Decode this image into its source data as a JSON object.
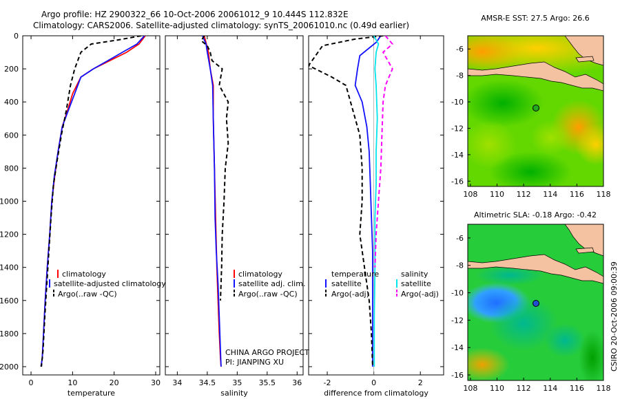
{
  "header": {
    "title_line1": "Argo profile: HZ 2900322_66 10-Oct-2006 20061012_9 10.444S 112.832E",
    "title_line2": "Climatology: CARS2006. Satellite-adjusted climatology: synTS_20061010.nc (0.49d earlier)"
  },
  "side_stamp": "CSIRO 20-Oct-2006 09:00:39",
  "project_note": {
    "line1": "CHINA ARGO PROJECT",
    "line2": "PI: JIANPING XU"
  },
  "colors": {
    "climatology": "#ff0000",
    "satellite": "#1010ff",
    "argo": "#000000",
    "salinity_sat": "#00e5ee",
    "salinity_argo": "#ff00ff",
    "land": "#f4c2a0"
  },
  "chart_data": [
    {
      "id": "temperature",
      "type": "line",
      "xlabel": "temperature",
      "xlim": [
        -2,
        31
      ],
      "ylim": [
        2050,
        0
      ],
      "xticks": [
        0,
        10,
        20,
        30
      ],
      "xtick_labels": [
        "0",
        "10",
        "20",
        "30"
      ],
      "yticks": [
        0,
        200,
        400,
        600,
        800,
        1000,
        1200,
        1400,
        1600,
        1800,
        2000
      ],
      "ytick_labels": [
        "0",
        "200",
        "400",
        "600",
        "800",
        "1000",
        "1200",
        "1400",
        "1600",
        "1800",
        "2000"
      ],
      "legend": [
        "climatology",
        "satellite-adjusted climatology",
        "Argo(..raw -QC)"
      ],
      "series": [
        {
          "name": "climatology",
          "color": "#ff0000",
          "dashed": false,
          "x": [
            27.5,
            26,
            23,
            19,
            15,
            12,
            10,
            8.8,
            7.5,
            6.5,
            5.7,
            5,
            4.5,
            3.9,
            3.4,
            3,
            2.7,
            2.4
          ],
          "y": [
            0,
            50,
            100,
            150,
            200,
            250,
            350,
            450,
            550,
            700,
            850,
            1000,
            1200,
            1400,
            1600,
            1800,
            1950,
            2000
          ]
        },
        {
          "name": "satellite-adjusted climatology",
          "color": "#1010ff",
          "dashed": false,
          "x": [
            27.3,
            25.5,
            22,
            18.5,
            15,
            12,
            10.5,
            9,
            7.5,
            6.5,
            5.6,
            5,
            4.5,
            3.9,
            3.4,
            3,
            2.7,
            2.4
          ],
          "y": [
            0,
            50,
            100,
            150,
            200,
            250,
            350,
            450,
            550,
            700,
            850,
            1000,
            1200,
            1400,
            1600,
            1800,
            1950,
            2000
          ]
        },
        {
          "name": "Argo(..raw -QC)",
          "color": "#000000",
          "dashed": true,
          "x": [
            26.5,
            21,
            14.5,
            12,
            10.5,
            9.5,
            8.5,
            7.3,
            6.3,
            5.4,
            4.8,
            4.3,
            3.8,
            3.3,
            2.9,
            2.5
          ],
          "y": [
            0,
            25,
            50,
            100,
            200,
            300,
            450,
            600,
            750,
            900,
            1100,
            1300,
            1500,
            1700,
            1900,
            2000
          ]
        }
      ]
    },
    {
      "id": "salinity",
      "type": "line",
      "xlabel": "salinity",
      "xlim": [
        33.8,
        36.1
      ],
      "ylim": [
        2050,
        0
      ],
      "xticks": [
        34,
        34.5,
        35,
        35.5,
        36
      ],
      "xtick_labels": [
        "34",
        "34.5",
        "35",
        "35.5",
        "36"
      ],
      "legend": [
        "climatology",
        "satellite adj. clim.",
        "Argo(..raw -QC)"
      ],
      "series": [
        {
          "name": "climatology",
          "color": "#ff0000",
          "dashed": false,
          "x": [
            34.45,
            34.52,
            34.55,
            34.6,
            34.6,
            34.62,
            34.64,
            34.66,
            34.68,
            34.7,
            34.72,
            34.73
          ],
          "y": [
            0,
            100,
            200,
            300,
            500,
            800,
            1100,
            1400,
            1600,
            1800,
            1950,
            2000
          ]
        },
        {
          "name": "satellite adj. clim.",
          "color": "#1010ff",
          "dashed": false,
          "x": [
            34.42,
            34.48,
            34.5,
            34.55,
            34.59,
            34.6,
            34.62,
            34.63,
            34.65,
            34.68,
            34.7,
            34.72,
            34.73
          ],
          "y": [
            0,
            50,
            100,
            200,
            300,
            500,
            800,
            1100,
            1300,
            1500,
            1700,
            1900,
            2000
          ]
        },
        {
          "name": "Argo(..raw -QC)",
          "color": "#000000",
          "dashed": true,
          "x": [
            34.45,
            34.4,
            34.5,
            34.55,
            34.58,
            34.75,
            34.7,
            34.85,
            34.82,
            34.85,
            34.8,
            34.78,
            34.75,
            34.74,
            34.72
          ],
          "y": [
            0,
            30,
            60,
            100,
            150,
            200,
            300,
            400,
            500,
            650,
            800,
            1000,
            1200,
            1400,
            1600
          ]
        }
      ]
    },
    {
      "id": "difference",
      "type": "line",
      "xlabel": "difference from climatology",
      "xlim": [
        -2.8,
        3
      ],
      "ylim": [
        2050,
        0
      ],
      "xticks": [
        -2,
        0,
        2
      ],
      "xtick_labels": [
        "-2",
        "0",
        "2"
      ],
      "legend_temperature": {
        "title": "temperature",
        "items": [
          "satellite",
          "Argo(-adj)"
        ]
      },
      "legend_salinity": {
        "title": "salinity",
        "items": [
          "satellite",
          "Argo(-adj)"
        ]
      },
      "series": [
        {
          "name": "temperature satellite",
          "color": "#1010ff",
          "dashed": false,
          "x": [
            0.3,
            0.1,
            -0.6,
            -0.7,
            -0.8,
            -0.5,
            -0.3,
            -0.2,
            -0.15,
            -0.1,
            -0.05,
            -0.05,
            -0.05,
            -0.05
          ],
          "y": [
            0,
            40,
            120,
            200,
            300,
            400,
            550,
            700,
            900,
            1100,
            1300,
            1500,
            1700,
            2000
          ]
        },
        {
          "name": "temperature Argo(-adj)",
          "color": "#000000",
          "dashed": true,
          "x": [
            0.4,
            -0.8,
            -2.2,
            -2.8,
            -1.8,
            -1.2,
            -0.9,
            -0.6,
            -0.5,
            -0.5,
            -0.6,
            -0.4,
            -0.2,
            -0.1,
            -0.05
          ],
          "y": [
            0,
            20,
            60,
            180,
            250,
            300,
            450,
            600,
            800,
            1000,
            1200,
            1400,
            1600,
            1800,
            2000
          ]
        },
        {
          "name": "salinity satellite",
          "color": "#00e5ee",
          "dashed": false,
          "x": [
            0,
            0.2,
            0.1,
            0.05,
            0.1,
            0.15,
            0.1,
            0.1,
            0.05,
            0.05,
            0.02,
            0.02
          ],
          "y": [
            0,
            50,
            100,
            200,
            300,
            500,
            700,
            900,
            1100,
            1400,
            1700,
            2000
          ]
        },
        {
          "name": "salinity Argo(-adj)",
          "color": "#ff00ff",
          "dashed": true,
          "x": [
            0.5,
            0.8,
            0.4,
            0.8,
            0.5,
            0.4,
            0.35,
            0.3,
            0.2,
            0.1,
            0.05
          ],
          "y": [
            0,
            50,
            100,
            200,
            300,
            400,
            600,
            800,
            1000,
            1200,
            1400
          ]
        }
      ]
    },
    {
      "id": "sst_map",
      "type": "heatmap",
      "title": "AMSR-E SST: 27.5 Argo: 26.6",
      "xlim": [
        107.8,
        118
      ],
      "ylim": [
        -16.4,
        -5
      ],
      "xticks": [
        108,
        110,
        112,
        114,
        116,
        118
      ],
      "xtick_labels": [
        "108",
        "110",
        "112",
        "114",
        "116",
        "118"
      ],
      "yticks": [
        -6,
        -8,
        -10,
        -12,
        -14,
        -16
      ],
      "ytick_labels": [
        "-6",
        "-8",
        "-10",
        "-12",
        "-14",
        "-16"
      ],
      "float_position": {
        "lon": 112.832,
        "lat": -10.444
      }
    },
    {
      "id": "sla_map",
      "type": "heatmap",
      "title": "Altimetric SLA: -0.18 Argo: -0.42",
      "xlim": [
        107.8,
        118
      ],
      "ylim": [
        -16.4,
        -5
      ],
      "xticks": [
        108,
        110,
        112,
        114,
        116,
        118
      ],
      "xtick_labels": [
        "108",
        "110",
        "112",
        "114",
        "116",
        "118"
      ],
      "yticks": [
        -6,
        -8,
        -10,
        -12,
        -14,
        -16
      ],
      "ytick_labels": [
        "-6",
        "-8",
        "-10",
        "-12",
        "-14",
        "-16"
      ],
      "float_position": {
        "lon": 112.832,
        "lat": -10.444
      }
    }
  ]
}
